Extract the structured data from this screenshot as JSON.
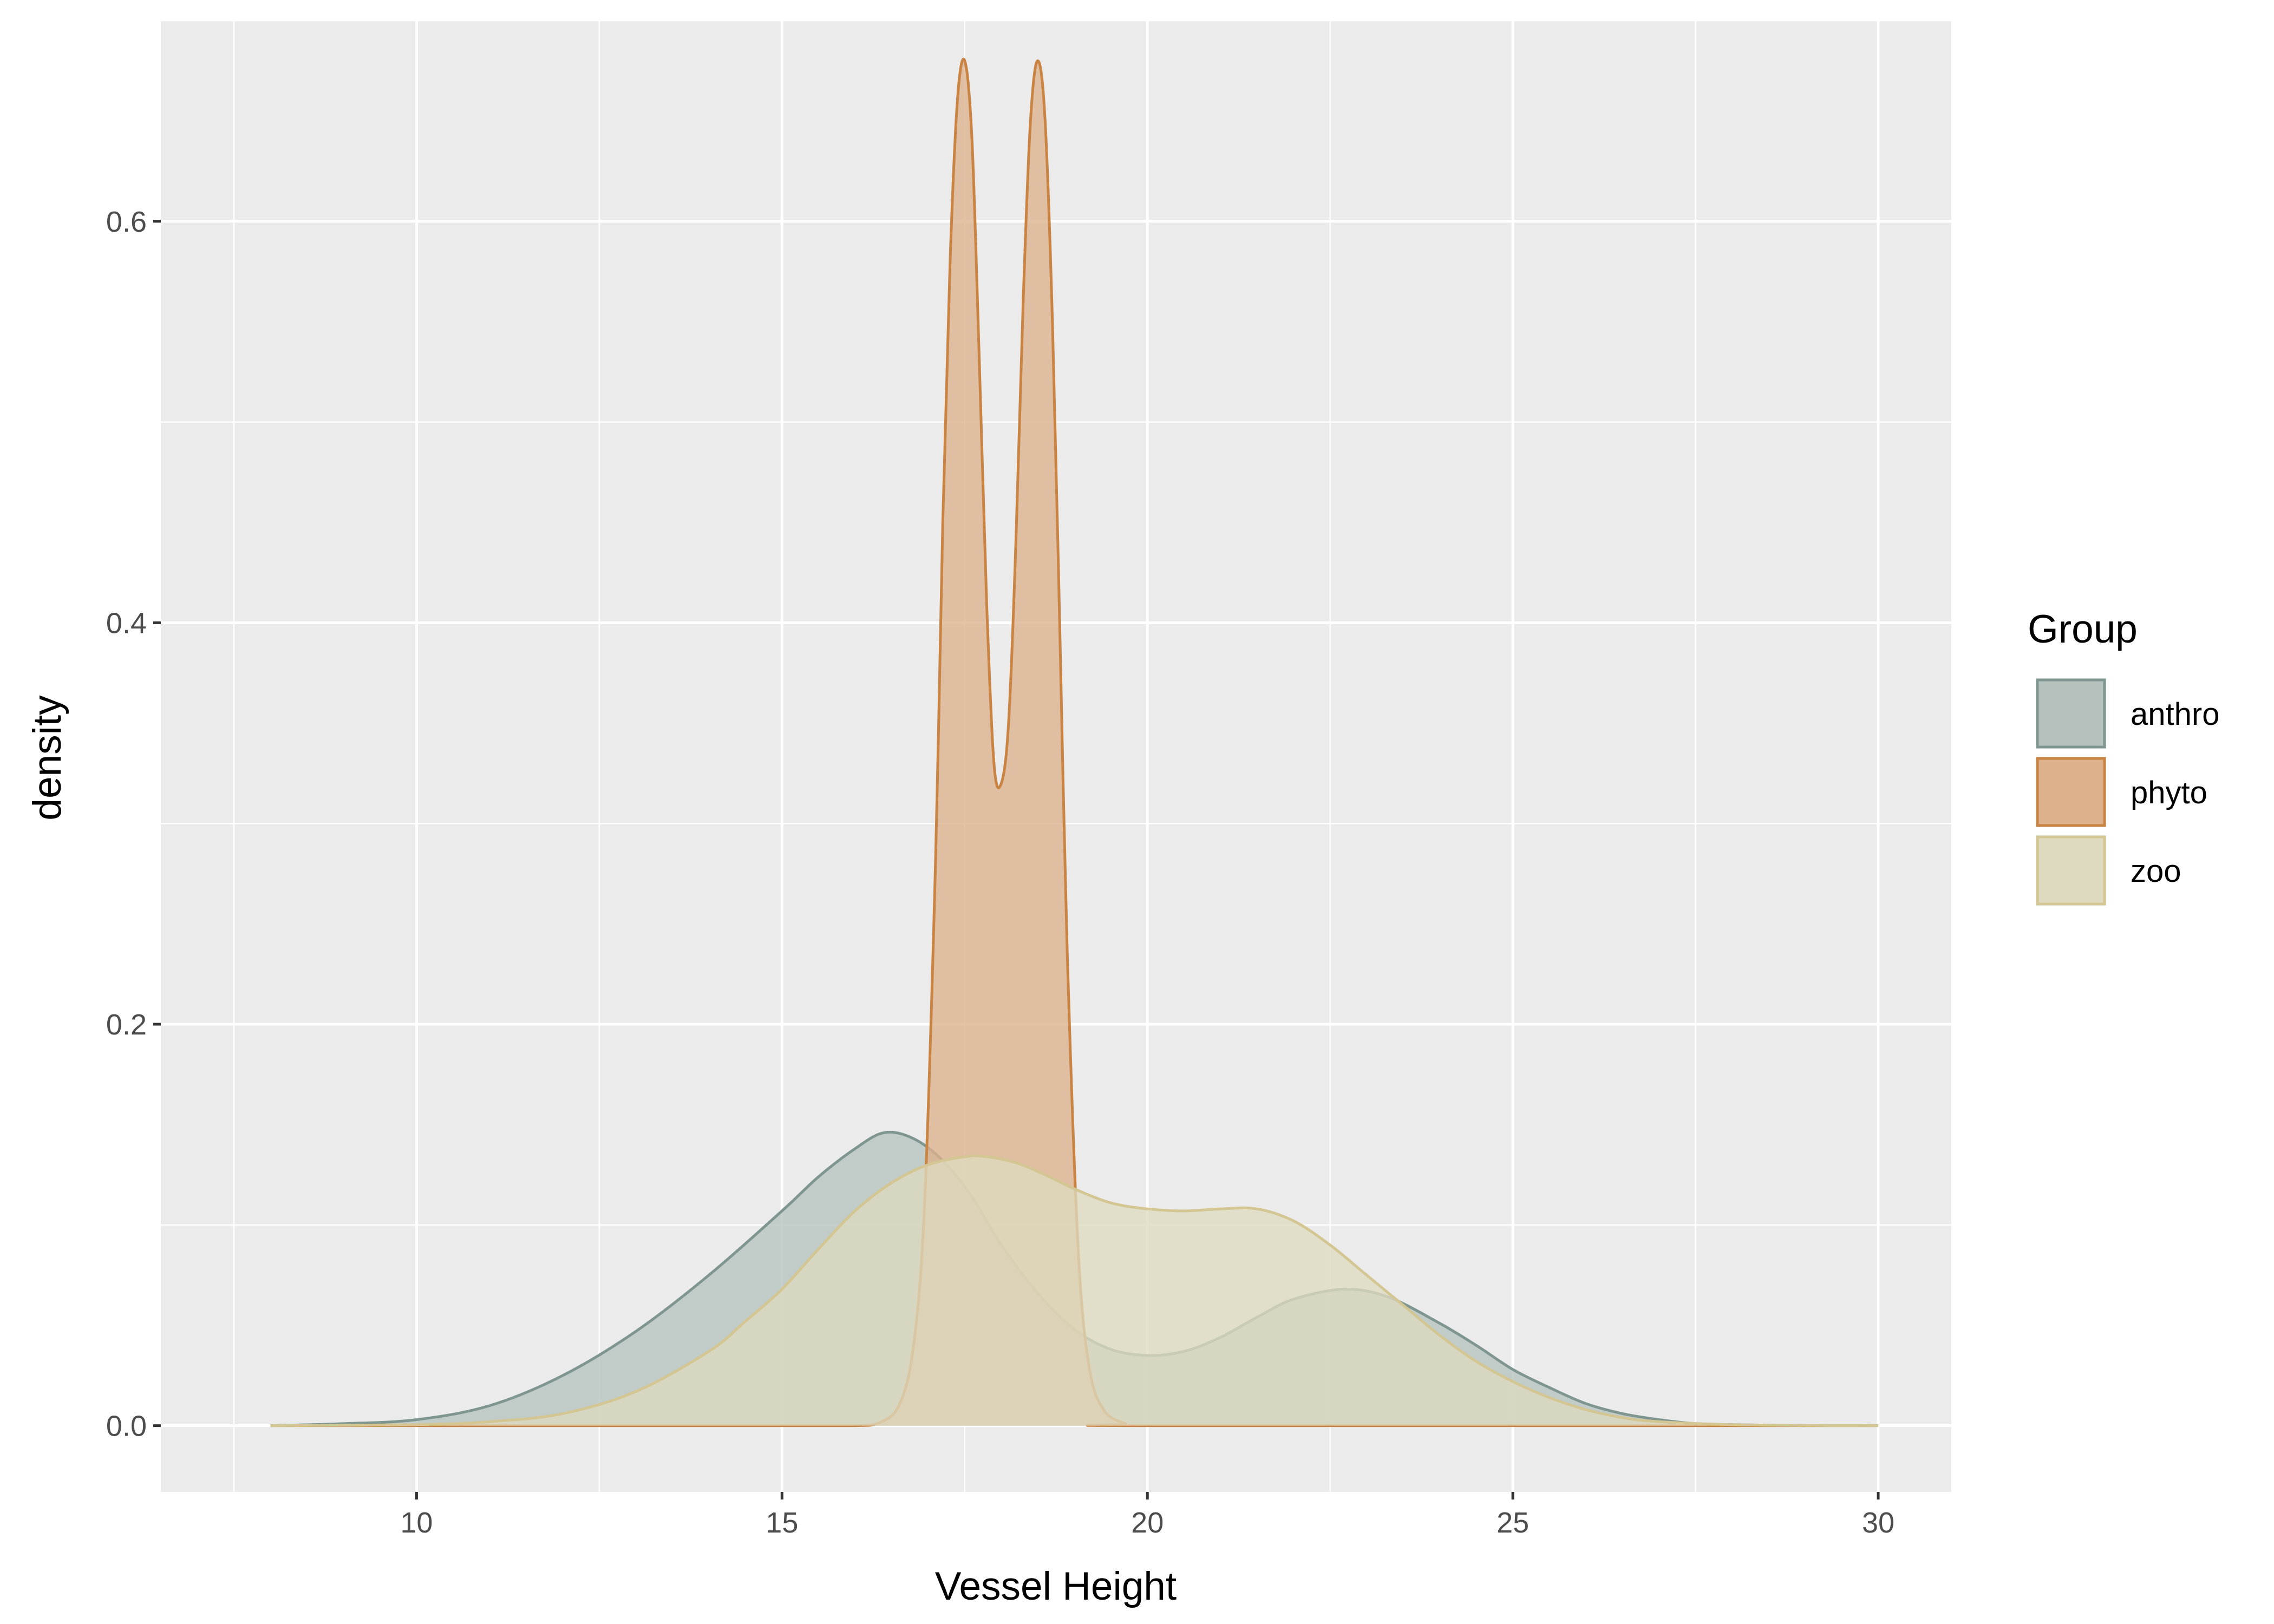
{
  "chart_data": {
    "type": "area",
    "title": "",
    "xlabel": "Vessel Height",
    "ylabel": "density",
    "xlim": [
      6.5,
      31.0
    ],
    "ylim": [
      -0.033,
      0.7
    ],
    "x_ticks": [
      10,
      15,
      20,
      25,
      30
    ],
    "x_tick_labels": [
      "10",
      "15",
      "20",
      "25",
      "30"
    ],
    "y_ticks": [
      0.0,
      0.2,
      0.4,
      0.6
    ],
    "y_tick_labels": [
      "0.0",
      "0.2",
      "0.4",
      "0.6"
    ],
    "grid": true,
    "legend": {
      "title": "Group",
      "placement": "right"
    },
    "colors": {
      "panel": "#EBEBEB",
      "grid": "#FFFFFF",
      "anthro_line": "#7F9690",
      "anthro_fill": "#B5C1BD",
      "phyto_line": "#C98343",
      "phyto_fill": "#DDB18C",
      "zoo_line": "#D3C693",
      "zoo_fill": "#DEDABF"
    },
    "series": [
      {
        "name": "anthro",
        "x": [
          8.0,
          9.0,
          10.0,
          11.0,
          12.0,
          13.0,
          14.0,
          15.0,
          15.5,
          16.0,
          16.4,
          16.8,
          17.2,
          17.6,
          18.0,
          18.5,
          19.0,
          19.5,
          20.0,
          20.5,
          21.0,
          21.5,
          22.0,
          22.7,
          23.3,
          24.0,
          24.5,
          25.0,
          25.5,
          26.0,
          26.5,
          27.0,
          27.5,
          28.0,
          29.0
        ],
        "y": [
          0.0,
          0.001,
          0.003,
          0.01,
          0.025,
          0.047,
          0.075,
          0.107,
          0.124,
          0.138,
          0.146,
          0.143,
          0.132,
          0.114,
          0.09,
          0.066,
          0.048,
          0.038,
          0.035,
          0.037,
          0.044,
          0.054,
          0.063,
          0.068,
          0.064,
          0.051,
          0.04,
          0.028,
          0.019,
          0.011,
          0.006,
          0.003,
          0.001,
          0.0005,
          0.0
        ]
      },
      {
        "name": "phyto",
        "x": [
          8.0,
          15.0,
          16.0,
          16.3,
          16.6,
          16.8,
          16.95,
          17.1,
          17.2,
          17.3,
          17.4,
          17.5,
          17.6,
          17.7,
          17.8,
          17.9,
          18.0,
          18.1,
          18.2,
          18.3,
          18.4,
          18.5,
          18.6,
          18.7,
          18.8,
          18.9,
          19.05,
          19.2,
          19.4,
          19.7,
          20.0,
          30.0
        ],
        "y": [
          0.0,
          0.0,
          0.0,
          0.001,
          0.01,
          0.04,
          0.11,
          0.28,
          0.45,
          0.58,
          0.66,
          0.68,
          0.64,
          0.53,
          0.41,
          0.33,
          0.32,
          0.35,
          0.44,
          0.56,
          0.65,
          0.68,
          0.65,
          0.55,
          0.4,
          0.24,
          0.09,
          0.03,
          0.008,
          0.001,
          0.0,
          0.0
        ]
      },
      {
        "name": "zoo",
        "x": [
          8.0,
          10.0,
          11.0,
          12.0,
          13.0,
          14.0,
          14.5,
          15.0,
          15.5,
          16.0,
          16.5,
          17.0,
          17.5,
          17.8,
          18.2,
          18.6,
          19.0,
          19.5,
          20.0,
          20.5,
          21.0,
          21.5,
          22.0,
          22.5,
          23.0,
          23.5,
          24.0,
          24.5,
          25.0,
          25.5,
          26.0,
          26.5,
          27.0,
          28.0,
          29.0,
          30.0
        ],
        "y": [
          0.0,
          0.0005,
          0.002,
          0.006,
          0.017,
          0.037,
          0.052,
          0.068,
          0.088,
          0.107,
          0.121,
          0.13,
          0.134,
          0.134,
          0.131,
          0.125,
          0.118,
          0.111,
          0.108,
          0.107,
          0.108,
          0.108,
          0.102,
          0.09,
          0.075,
          0.06,
          0.045,
          0.032,
          0.022,
          0.014,
          0.008,
          0.004,
          0.002,
          0.0005,
          0.0001,
          0.0
        ]
      }
    ]
  }
}
